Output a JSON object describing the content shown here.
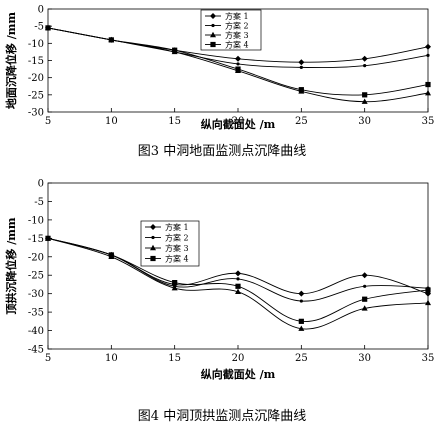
{
  "chart_data": [
    {
      "type": "line",
      "title": "图3   中洞地面监测点沉降曲线",
      "xlabel": "纵向截面处 /m",
      "ylabel": "地面沉降位移 /mm",
      "x": [
        5,
        10,
        15,
        20,
        25,
        30,
        35
      ],
      "xlim": [
        5,
        35
      ],
      "ylim": [
        -30,
        0
      ],
      "yticks": [
        0,
        -5,
        -10,
        -15,
        -20,
        -25,
        -30
      ],
      "grid": false,
      "legend_position": "top-center",
      "series": [
        {
          "name": "方案 1",
          "marker": "diamond",
          "values": [
            -5.5,
            -9.0,
            -12.0,
            -14.5,
            -15.5,
            -14.5,
            -11.0
          ]
        },
        {
          "name": "方案 2",
          "marker": "small-dot",
          "values": [
            -5.5,
            -9.0,
            -12.5,
            -16.0,
            -17.0,
            -16.5,
            -13.5
          ]
        },
        {
          "name": "方案 3",
          "marker": "triangle",
          "values": [
            -5.5,
            -9.0,
            -12.5,
            -18.0,
            -24.0,
            -27.0,
            -24.5
          ]
        },
        {
          "name": "方案 4",
          "marker": "square",
          "values": [
            -5.5,
            -9.0,
            -12.0,
            -17.5,
            -23.5,
            -25.0,
            -22.0
          ]
        }
      ]
    },
    {
      "type": "line",
      "title": "图4   中洞顶拱监测点沉降曲线",
      "xlabel": "纵向截面处 /m",
      "ylabel": "顶拱沉降位移 /mm",
      "x": [
        5,
        10,
        15,
        20,
        25,
        30,
        35
      ],
      "xlim": [
        5,
        35
      ],
      "ylim": [
        -45,
        0
      ],
      "yticks": [
        0,
        -5,
        -10,
        -15,
        -20,
        -25,
        -30,
        -35,
        -40,
        -45
      ],
      "grid": false,
      "legend_position": "top-center",
      "series": [
        {
          "name": "方案 1",
          "marker": "diamond",
          "values": [
            -15.0,
            -19.5,
            -27.5,
            -24.5,
            -30.0,
            -25.0,
            -30.0
          ]
        },
        {
          "name": "方案 2",
          "marker": "small-dot",
          "values": [
            -15.0,
            -19.5,
            -28.0,
            -26.0,
            -32.0,
            -28.0,
            -28.5
          ]
        },
        {
          "name": "方案 3",
          "marker": "triangle",
          "values": [
            -15.0,
            -20.0,
            -28.5,
            -29.5,
            -39.5,
            -34.0,
            -32.5
          ]
        },
        {
          "name": "方案 4",
          "marker": "square",
          "values": [
            -15.0,
            -19.5,
            -27.0,
            -28.0,
            -37.5,
            -31.5,
            -29.0
          ]
        }
      ]
    }
  ]
}
